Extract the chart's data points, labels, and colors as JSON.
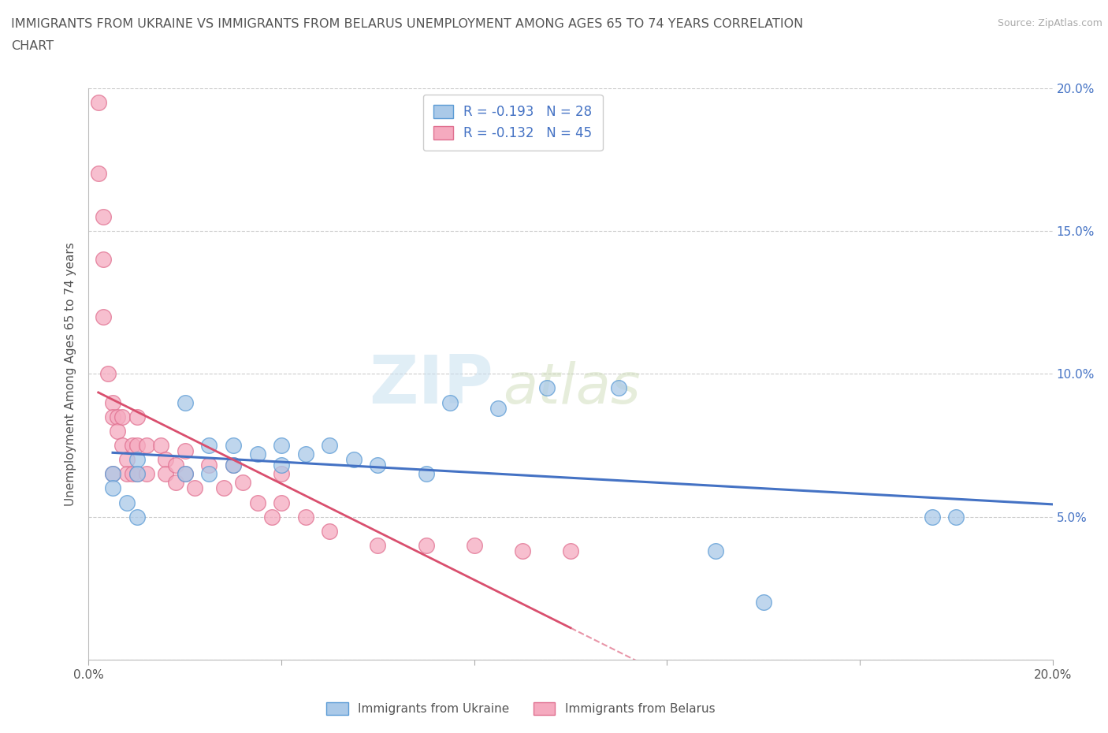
{
  "title_line1": "IMMIGRANTS FROM UKRAINE VS IMMIGRANTS FROM BELARUS UNEMPLOYMENT AMONG AGES 65 TO 74 YEARS CORRELATION",
  "title_line2": "CHART",
  "source_text": "Source: ZipAtlas.com",
  "ylabel": "Unemployment Among Ages 65 to 74 years",
  "xlim": [
    0.0,
    0.2
  ],
  "ylim": [
    0.0,
    0.2
  ],
  "x_ticks": [
    0.0,
    0.04,
    0.08,
    0.12,
    0.16,
    0.2
  ],
  "y_ticks": [
    0.0,
    0.05,
    0.1,
    0.15,
    0.2
  ],
  "x_tick_labels": [
    "0.0%",
    "",
    "",
    "",
    "",
    "20.0%"
  ],
  "y_right_labels": [
    "",
    "5.0%",
    "10.0%",
    "15.0%",
    "20.0%"
  ],
  "ukraine_color": "#aac9e8",
  "belarus_color": "#f5aabf",
  "ukraine_edge": "#5b9bd5",
  "belarus_edge": "#e07090",
  "trendline_ukraine_color": "#4472c4",
  "trendline_belarus_color": "#d94f6e",
  "ukraine_R": -0.193,
  "ukraine_N": 28,
  "belarus_R": -0.132,
  "belarus_N": 45,
  "legend_label_ukraine": "Immigrants from Ukraine",
  "legend_label_belarus": "Immigrants from Belarus",
  "watermark_zip": "ZIP",
  "watermark_atlas": "atlas",
  "background_color": "#ffffff",
  "ukraine_x": [
    0.005,
    0.005,
    0.008,
    0.01,
    0.01,
    0.01,
    0.02,
    0.02,
    0.025,
    0.025,
    0.03,
    0.03,
    0.035,
    0.04,
    0.04,
    0.045,
    0.05,
    0.055,
    0.06,
    0.07,
    0.075,
    0.085,
    0.095,
    0.11,
    0.13,
    0.14,
    0.175,
    0.18
  ],
  "ukraine_y": [
    0.065,
    0.06,
    0.055,
    0.07,
    0.065,
    0.05,
    0.09,
    0.065,
    0.075,
    0.065,
    0.075,
    0.068,
    0.072,
    0.075,
    0.068,
    0.072,
    0.075,
    0.07,
    0.068,
    0.065,
    0.09,
    0.088,
    0.095,
    0.095,
    0.038,
    0.02,
    0.05,
    0.05
  ],
  "belarus_x": [
    0.002,
    0.002,
    0.003,
    0.003,
    0.003,
    0.004,
    0.005,
    0.005,
    0.005,
    0.006,
    0.006,
    0.007,
    0.007,
    0.008,
    0.008,
    0.009,
    0.009,
    0.01,
    0.01,
    0.01,
    0.012,
    0.012,
    0.015,
    0.016,
    0.016,
    0.018,
    0.018,
    0.02,
    0.02,
    0.022,
    0.025,
    0.028,
    0.03,
    0.032,
    0.035,
    0.038,
    0.04,
    0.04,
    0.045,
    0.05,
    0.06,
    0.07,
    0.08,
    0.09,
    0.1
  ],
  "belarus_y": [
    0.195,
    0.17,
    0.155,
    0.14,
    0.12,
    0.1,
    0.09,
    0.085,
    0.065,
    0.085,
    0.08,
    0.085,
    0.075,
    0.07,
    0.065,
    0.075,
    0.065,
    0.085,
    0.075,
    0.065,
    0.075,
    0.065,
    0.075,
    0.07,
    0.065,
    0.068,
    0.062,
    0.073,
    0.065,
    0.06,
    0.068,
    0.06,
    0.068,
    0.062,
    0.055,
    0.05,
    0.065,
    0.055,
    0.05,
    0.045,
    0.04,
    0.04,
    0.04,
    0.038,
    0.038
  ]
}
